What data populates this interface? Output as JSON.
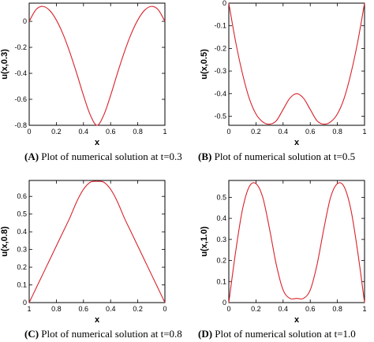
{
  "colors": {
    "curve": "#d8232a",
    "axis": "#000000"
  },
  "chart_data": [
    {
      "id": "A",
      "type": "line",
      "caption_letter": "(A)",
      "caption_text": " Plot of numerical solution at t=0.3",
      "xlabel": "x",
      "ylabel": "u(x,0.3)",
      "xlim": [
        0,
        1
      ],
      "ylim": [
        -0.8,
        0.14
      ],
      "x_ticks": [
        0,
        0.2,
        0.4,
        0.6,
        0.8,
        1
      ],
      "x_tick_labels": [
        "0",
        "0.2",
        "0.4",
        "0.6",
        "0.8",
        "1"
      ],
      "y_ticks": [
        0,
        -0.2,
        -0.4,
        -0.6,
        -0.8
      ],
      "y_tick_labels": [
        "0",
        "-0.2",
        "-0.4",
        "-0.6",
        "-0.8"
      ],
      "series": [
        {
          "x": [
            0,
            0.05,
            0.1,
            0.15,
            0.2,
            0.25,
            0.3,
            0.35,
            0.4,
            0.45,
            0.5,
            0.55,
            0.6,
            0.65,
            0.7,
            0.75,
            0.8,
            0.85,
            0.9,
            0.95,
            1
          ],
          "y": [
            0.0,
            0.09,
            0.115,
            0.085,
            0.01,
            -0.1,
            -0.24,
            -0.4,
            -0.57,
            -0.72,
            -0.8,
            -0.72,
            -0.57,
            -0.4,
            -0.24,
            -0.1,
            0.01,
            0.085,
            0.115,
            0.09,
            0.0
          ]
        }
      ]
    },
    {
      "id": "B",
      "type": "line",
      "caption_letter": "(B)",
      "caption_text": " Plot of numerical solution at t=0.5",
      "xlabel": "x",
      "ylabel": "u(x,0.5)",
      "xlim": [
        0,
        1
      ],
      "ylim": [
        -0.54,
        0.0
      ],
      "x_ticks": [
        0,
        0.2,
        0.4,
        0.6,
        0.8,
        1
      ],
      "x_tick_labels": [
        "0",
        "0.2",
        "0.4",
        "0.6",
        "0.8",
        "1"
      ],
      "y_ticks": [
        0,
        -0.1,
        -0.2,
        -0.3,
        -0.4,
        -0.5
      ],
      "y_tick_labels": [
        "0",
        "-0.1",
        "-0.2",
        "-0.3",
        "-0.4",
        "-0.5"
      ],
      "series": [
        {
          "x": [
            0,
            0.05,
            0.1,
            0.15,
            0.2,
            0.25,
            0.3,
            0.35,
            0.4,
            0.45,
            0.5,
            0.55,
            0.6,
            0.65,
            0.7,
            0.75,
            0.8,
            0.85,
            0.9,
            0.95,
            1
          ],
          "y": [
            0.0,
            -0.17,
            -0.31,
            -0.42,
            -0.49,
            -0.525,
            -0.535,
            -0.52,
            -0.47,
            -0.42,
            -0.4,
            -0.42,
            -0.47,
            -0.52,
            -0.535,
            -0.525,
            -0.49,
            -0.42,
            -0.31,
            -0.17,
            0.0
          ]
        }
      ]
    },
    {
      "id": "C",
      "type": "line",
      "caption_letter": "(C)",
      "caption_text": " Plot of numerical solution at t=0.8",
      "xlabel": "x",
      "ylabel": "u(x,0.8)",
      "xlim": [
        1,
        0
      ],
      "ylim": [
        0,
        0.69
      ],
      "x_ticks": [
        1,
        0.8,
        0.6,
        0.4,
        0.2,
        0
      ],
      "x_tick_labels": [
        "1",
        "0.8",
        "0.6",
        "0.4",
        "0.2",
        "0"
      ],
      "y_ticks": [
        0,
        0.1,
        0.2,
        0.3,
        0.4,
        0.5,
        0.6
      ],
      "y_tick_labels": [
        "0",
        "0.1",
        "0.2",
        "0.3",
        "0.4",
        "0.5",
        "0.6"
      ],
      "series": [
        {
          "x": [
            1,
            0.95,
            0.9,
            0.85,
            0.8,
            0.75,
            0.7,
            0.65,
            0.6,
            0.55,
            0.5,
            0.45,
            0.4,
            0.35,
            0.3,
            0.25,
            0.2,
            0.15,
            0.1,
            0.05,
            0
          ],
          "y": [
            0.0,
            0.08,
            0.16,
            0.24,
            0.32,
            0.4,
            0.48,
            0.57,
            0.64,
            0.68,
            0.685,
            0.68,
            0.64,
            0.57,
            0.48,
            0.4,
            0.32,
            0.24,
            0.16,
            0.08,
            0.0
          ]
        }
      ]
    },
    {
      "id": "D",
      "type": "line",
      "caption_letter": "(D)",
      "caption_text": " Plot of numerical solution at t=1.0",
      "xlabel": "x",
      "ylabel": "u(x,1.0)",
      "xlim": [
        0,
        1
      ],
      "ylim": [
        0,
        0.58
      ],
      "x_ticks": [
        0,
        0.2,
        0.4,
        0.6,
        0.8,
        1
      ],
      "x_tick_labels": [
        "0",
        "0.2",
        "0.4",
        "0.6",
        "0.8",
        "1"
      ],
      "y_ticks": [
        0,
        0.1,
        0.2,
        0.3,
        0.4,
        0.5
      ],
      "y_tick_labels": [
        "0",
        "0.1",
        "0.2",
        "0.3",
        "0.4",
        "0.5"
      ],
      "series": [
        {
          "x": [
            0,
            0.05,
            0.1,
            0.15,
            0.2,
            0.25,
            0.3,
            0.35,
            0.4,
            0.45,
            0.5,
            0.55,
            0.6,
            0.65,
            0.7,
            0.75,
            0.8,
            0.85,
            0.9,
            0.95,
            1
          ],
          "y": [
            0.0,
            0.24,
            0.44,
            0.55,
            0.565,
            0.5,
            0.35,
            0.18,
            0.06,
            0.02,
            0.02,
            0.02,
            0.06,
            0.18,
            0.35,
            0.5,
            0.565,
            0.55,
            0.44,
            0.24,
            0.0
          ]
        }
      ]
    }
  ]
}
